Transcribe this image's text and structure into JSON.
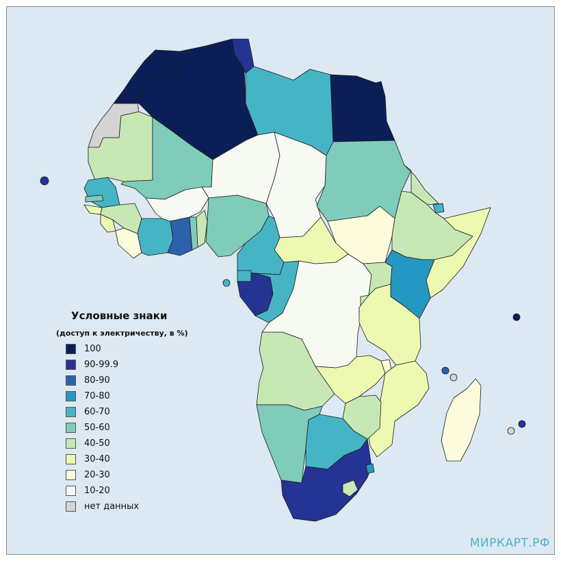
{
  "legend": {
    "title": "Условные знаки",
    "subtitle": "(доступ к электричеству, в %)",
    "items": [
      {
        "label": "100",
        "color": "#0b1f56"
      },
      {
        "label": "90-99.9",
        "color": "#253494"
      },
      {
        "label": "80-90",
        "color": "#2c62ab"
      },
      {
        "label": "70-80",
        "color": "#2498c2"
      },
      {
        "label": "60-70",
        "color": "#45b5c6"
      },
      {
        "label": "50-60",
        "color": "#7fccba"
      },
      {
        "label": "40-50",
        "color": "#c7e8b5"
      },
      {
        "label": "30-40",
        "color": "#edf8b1"
      },
      {
        "label": "20-30",
        "color": "#fcfcdc"
      },
      {
        "label": "10-20",
        "color": "#f6faf2"
      },
      {
        "label": "нет данных",
        "color": "#d4d4d4"
      }
    ]
  },
  "watermark": "МИРКАРТ.РФ",
  "map": {
    "ocean_color": "#dce9f3",
    "regions": [
      {
        "name": "western-sahara",
        "category": "нет данных"
      },
      {
        "name": "morocco",
        "category": "100"
      },
      {
        "name": "algeria",
        "category": "100"
      },
      {
        "name": "tunisia",
        "category": "90-99.9"
      },
      {
        "name": "libya",
        "category": "60-70"
      },
      {
        "name": "egypt",
        "category": "100"
      },
      {
        "name": "mauritania",
        "category": "40-50"
      },
      {
        "name": "mali",
        "category": "50-60"
      },
      {
        "name": "niger",
        "category": "10-20"
      },
      {
        "name": "chad",
        "category": "10-20"
      },
      {
        "name": "sudan",
        "category": "50-60"
      },
      {
        "name": "south-sudan",
        "category": "20-30"
      },
      {
        "name": "eritrea",
        "category": "40-50"
      },
      {
        "name": "djibouti",
        "category": "60-70"
      },
      {
        "name": "ethiopia",
        "category": "40-50"
      },
      {
        "name": "somalia",
        "category": "30-40"
      },
      {
        "name": "senegal",
        "category": "60-70"
      },
      {
        "name": "gambia",
        "category": "50-60"
      },
      {
        "name": "guinea-bissau",
        "category": "30-40"
      },
      {
        "name": "guinea",
        "category": "40-50"
      },
      {
        "name": "sierra-leone",
        "category": "30-40"
      },
      {
        "name": "liberia",
        "category": "20-30"
      },
      {
        "name": "cote-divoire",
        "category": "60-70"
      },
      {
        "name": "burkina-faso",
        "category": "10-20"
      },
      {
        "name": "ghana",
        "category": "80-90"
      },
      {
        "name": "togo",
        "category": "50-60"
      },
      {
        "name": "benin",
        "category": "40-50"
      },
      {
        "name": "nigeria",
        "category": "50-60"
      },
      {
        "name": "cameroon",
        "category": "60-70"
      },
      {
        "name": "central-african-republic",
        "category": "30-40"
      },
      {
        "name": "equatorial-guinea",
        "category": "60-70"
      },
      {
        "name": "gabon",
        "category": "90-99.9"
      },
      {
        "name": "congo",
        "category": "60-70"
      },
      {
        "name": "dr-congo",
        "category": "10-20"
      },
      {
        "name": "uganda",
        "category": "40-50"
      },
      {
        "name": "kenya",
        "category": "70-80"
      },
      {
        "name": "rwanda",
        "category": "40-50"
      },
      {
        "name": "burundi",
        "category": "20-30"
      },
      {
        "name": "tanzania",
        "category": "30-40"
      },
      {
        "name": "angola",
        "category": "40-50"
      },
      {
        "name": "zambia",
        "category": "30-40"
      },
      {
        "name": "malawi",
        "category": "20-30"
      },
      {
        "name": "mozambique",
        "category": "30-40"
      },
      {
        "name": "zimbabwe",
        "category": "40-50"
      },
      {
        "name": "namibia",
        "category": "50-60"
      },
      {
        "name": "botswana",
        "category": "60-70"
      },
      {
        "name": "south-africa",
        "category": "90-99.9"
      },
      {
        "name": "lesotho",
        "category": "40-50"
      },
      {
        "name": "eswatini",
        "category": "70-80"
      },
      {
        "name": "madagascar",
        "category": "20-30"
      },
      {
        "name": "cape-verde",
        "category": "90-99.9"
      },
      {
        "name": "sao-tome",
        "category": "60-70"
      },
      {
        "name": "comoros",
        "category": "80-90"
      },
      {
        "name": "mayotte",
        "category": "нет данных"
      },
      {
        "name": "seychelles",
        "category": "100"
      },
      {
        "name": "mauritius",
        "category": "90-99.9"
      },
      {
        "name": "reunion",
        "category": "нет данных"
      }
    ]
  }
}
